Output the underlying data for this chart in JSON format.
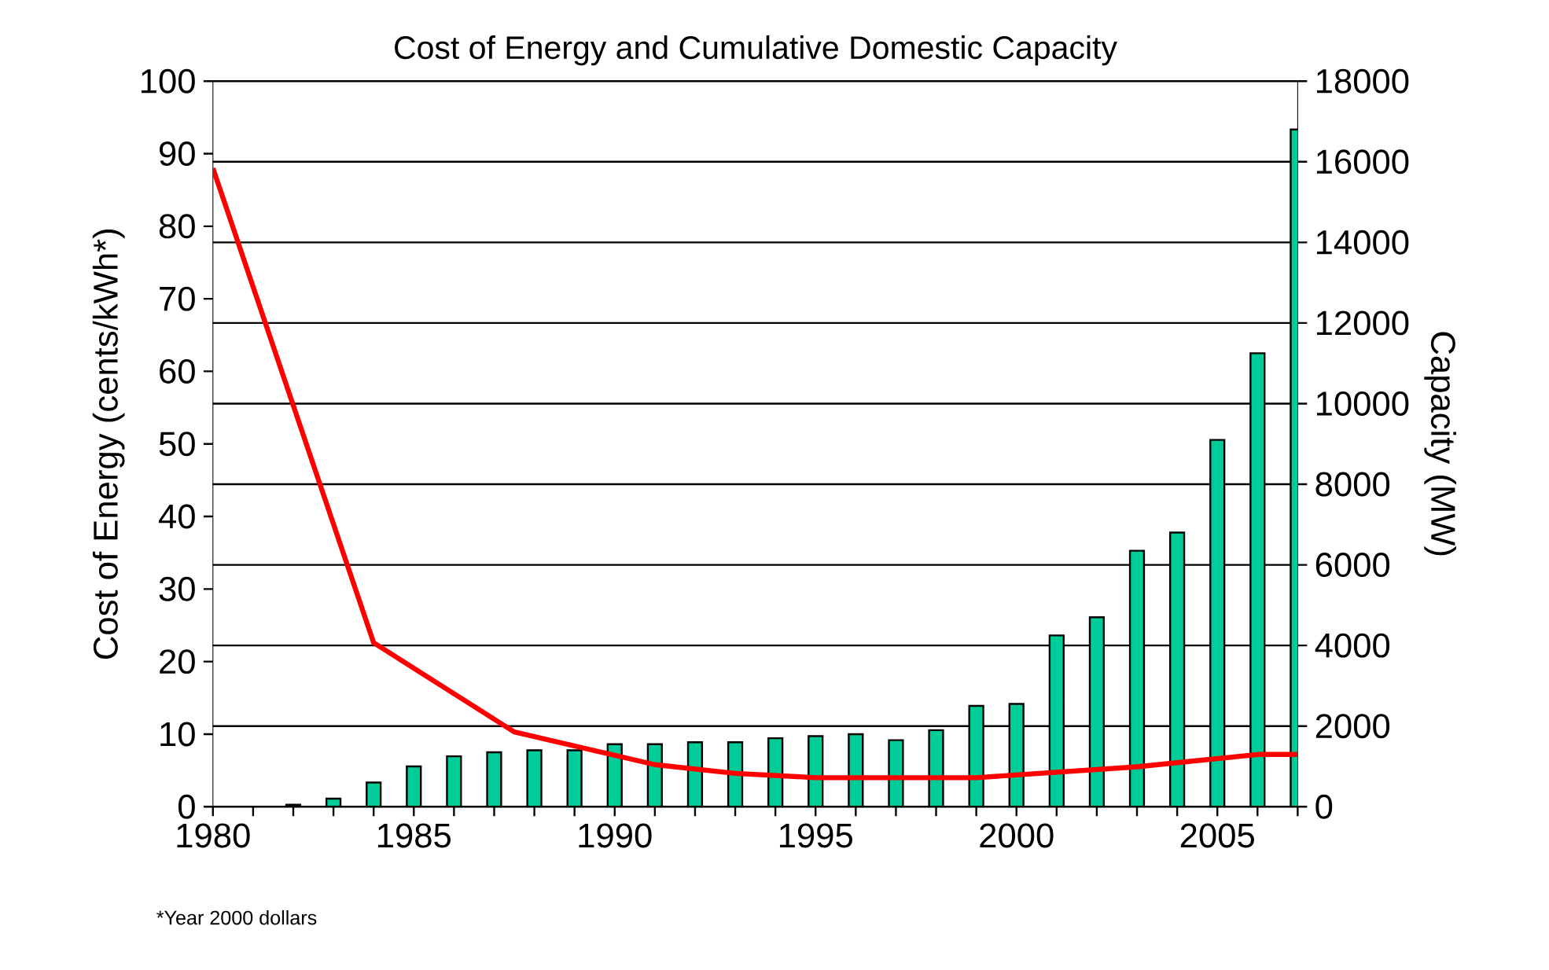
{
  "chart_data": {
    "type": "bar",
    "title": "Cost of Energy and Cumulative Domestic Capacity",
    "ylabel": "Cost of Energy (cents/kWh*)",
    "y2label": "Capacity (MW)",
    "x": [
      1982,
      1983,
      1984,
      1985,
      1986,
      1987,
      1988,
      1989,
      1990,
      1991,
      1992,
      1993,
      1994,
      1995,
      1996,
      1997,
      1998,
      1999,
      2000,
      2001,
      2002,
      2003,
      2004,
      2005,
      2006,
      2007
    ],
    "series": [
      {
        "axis": "y2",
        "color": "#00cc99",
        "values": [
          50,
          200,
          600,
          1000,
          1250,
          1350,
          1400,
          1400,
          1550,
          1550,
          1600,
          1600,
          1700,
          1750,
          1800,
          1650,
          1900,
          2500,
          2550,
          4250,
          4700,
          6350,
          6800,
          9100,
          11250,
          16800
        ]
      },
      {
        "type": "line",
        "axis": "y",
        "color": "#ff0000",
        "x": [
          1980,
          1984,
          1987.5,
          1991,
          1993,
          1995,
          1999,
          2003,
          2006,
          2007
        ],
        "values": [
          88,
          22.6,
          10.3,
          5.8,
          4.6,
          4.0,
          4.0,
          5.5,
          7.2,
          7.2
        ]
      }
    ],
    "xlim": [
      1980,
      2007
    ],
    "xticks": [
      1980,
      {
        "value": 1981,
        "label": null
      },
      {
        "value": 1982,
        "label": null
      },
      {
        "value": 1983,
        "label": null
      },
      {
        "value": 1984,
        "label": null
      },
      1985,
      {
        "value": 1986,
        "label": null
      },
      {
        "value": 1987,
        "label": null
      },
      {
        "value": 1988,
        "label": null
      },
      {
        "value": 1989,
        "label": null
      },
      1990,
      {
        "value": 1991,
        "label": null
      },
      {
        "value": 1992,
        "label": null
      },
      {
        "value": 1993,
        "label": null
      },
      {
        "value": 1994,
        "label": null
      },
      1995,
      {
        "value": 1996,
        "label": null
      },
      {
        "value": 1997,
        "label": null
      },
      {
        "value": 1998,
        "label": null
      },
      {
        "value": 1999,
        "label": null
      },
      2000,
      {
        "value": 2001,
        "label": null
      },
      {
        "value": 2002,
        "label": null
      },
      {
        "value": 2003,
        "label": null
      },
      {
        "value": 2004,
        "label": null
      },
      2005,
      {
        "value": 2006,
        "label": null
      },
      {
        "value": 2007,
        "label": null
      }
    ],
    "ylim": [
      0,
      100
    ],
    "yticks": [
      0,
      10,
      20,
      30,
      40,
      50,
      60,
      70,
      80,
      90,
      100
    ],
    "y2lim": [
      0,
      18000
    ],
    "y2ticks": [
      0,
      2000,
      4000,
      6000,
      8000,
      10000,
      12000,
      14000,
      16000,
      18000
    ],
    "grid": true,
    "legend": false,
    "marker": "none",
    "line_style": "solid",
    "annotations": [
      "*Year 2000 dollars"
    ]
  }
}
